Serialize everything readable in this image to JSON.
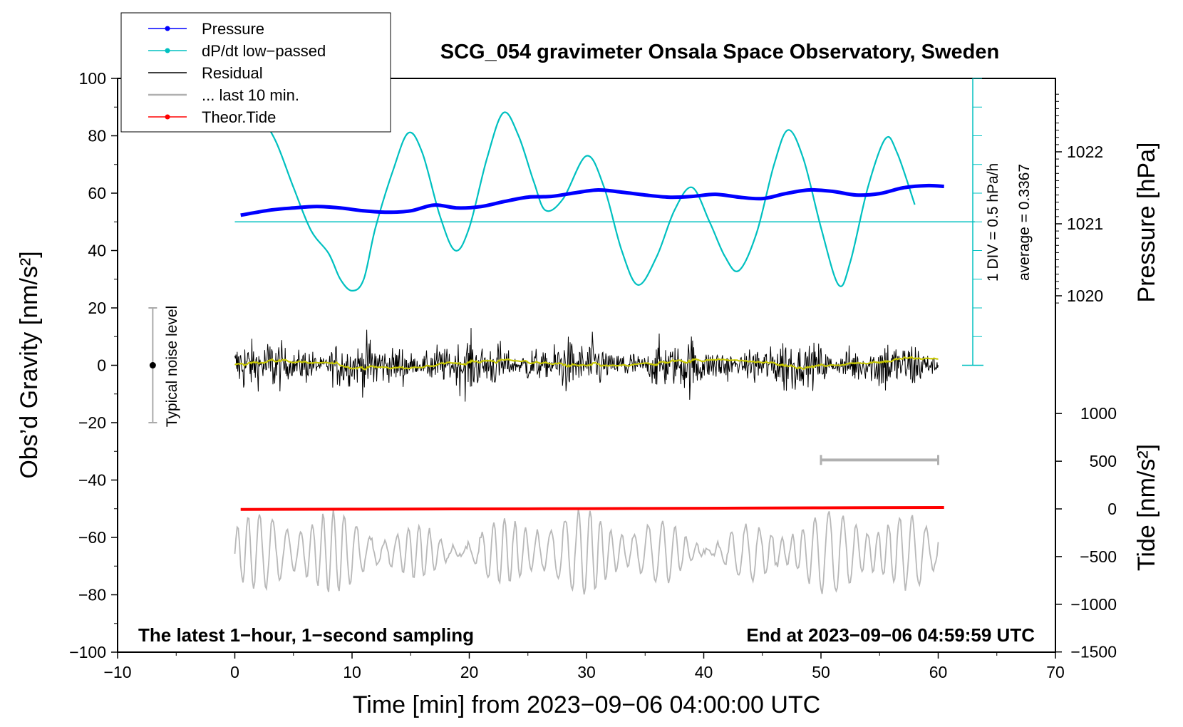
{
  "chart_data": {
    "type": "line",
    "title": "SCG_054 gravimeter Onsala Space Observatory, Sweden",
    "xlabel": "Time [min] from 2023−09−06 04:00:00 UTC",
    "ylabel": "Obs’d Gravity [nm/s²]",
    "xlim": [
      -10,
      70
    ],
    "ylim": [
      -100,
      100
    ],
    "x_ticks": [
      "−10",
      "0",
      "10",
      "20",
      "30",
      "40",
      "50",
      "60",
      "70"
    ],
    "y_ticks": [
      "100",
      "80",
      "60",
      "40",
      "20",
      "0",
      "−20",
      "−40",
      "−60",
      "−80",
      "−100"
    ],
    "pressure_axis": {
      "label": "Pressure [hPa]",
      "ticks": [
        "1022",
        "1021",
        "1020"
      ],
      "div_label": "1 DIV = 0.5 hPa/h",
      "average_label": "average = 0.3367"
    },
    "tide_axis": {
      "label": "Tide [nm/s²]",
      "ticks": [
        "1000",
        "500",
        "0",
        "−500",
        "−1000",
        "−1500"
      ]
    },
    "noise_label": "Typical noise level",
    "noise_range": [
      -20,
      20
    ],
    "bottom_left_note": "The latest 1−hour, 1−second sampling",
    "bottom_right_note": "End at 2023−09−06 04:59:59 UTC",
    "legend_position": "top-left",
    "legend": [
      {
        "label": "Pressure",
        "color": "#0000ff"
      },
      {
        "label": "dP/dt low−passed",
        "color": "#00c0c0"
      },
      {
        "label": "Residual",
        "color": "#000000"
      },
      {
        "label": "... last 10 min.",
        "color": "#b0b0b0"
      },
      {
        "label": "Theor.Tide",
        "color": "#ff0000"
      }
    ],
    "series": [
      {
        "name": "Pressure",
        "unit": "hPa",
        "x": [
          0.5,
          3,
          5,
          7,
          9,
          11,
          13,
          15,
          17,
          19,
          21,
          23,
          25,
          27,
          29,
          31,
          33,
          35,
          37,
          39,
          41,
          43,
          45,
          47,
          49,
          51,
          53,
          55,
          57,
          59,
          60.5
        ],
        "values": [
          1021.12,
          1021.19,
          1021.22,
          1021.24,
          1021.22,
          1021.18,
          1021.16,
          1021.18,
          1021.26,
          1021.22,
          1021.24,
          1021.31,
          1021.37,
          1021.38,
          1021.43,
          1021.47,
          1021.44,
          1021.4,
          1021.37,
          1021.38,
          1021.41,
          1021.37,
          1021.35,
          1021.42,
          1021.47,
          1021.45,
          1021.4,
          1021.42,
          1021.5,
          1021.53,
          1021.52
        ]
      },
      {
        "name": "dP/dt low−passed",
        "unit": "nm/s² plot scale",
        "x": [
          0,
          2,
          3.5,
          5,
          6.5,
          8,
          9,
          10,
          11,
          12,
          13.5,
          14.8,
          16,
          17.5,
          18.8,
          20,
          21.5,
          22.9,
          24.2,
          25.5,
          26.5,
          28,
          30,
          31.5,
          33,
          34.4,
          36,
          37.5,
          39,
          40.5,
          41.8,
          43,
          44.5,
          46,
          47.2,
          48.5,
          50,
          51.5,
          52.5,
          54,
          55.5,
          56.5,
          58
        ],
        "values": [
          99,
          88,
          78,
          62,
          47,
          39,
          30,
          26,
          30,
          48,
          68,
          81,
          74,
          52,
          40,
          48,
          72,
          88,
          80,
          64,
          54,
          58,
          73,
          62,
          40,
          28,
          38,
          54,
          62,
          50,
          38,
          33,
          46,
          70,
          82,
          72,
          48,
          28,
          36,
          62,
          79,
          74,
          56
        ]
      },
      {
        "name": "Residual",
        "unit": "nm/s²",
        "x": [
          0,
          60
        ],
        "values": [
          0,
          0
        ]
      },
      {
        "name": "... last 10 min.",
        "unit": "nm/s²",
        "x": [
          0,
          60
        ],
        "values": [
          -65,
          -65
        ]
      },
      {
        "name": "Theor.Tide",
        "unit": "nm/s²",
        "x": [
          0.5,
          10,
          20,
          30,
          40,
          50,
          60.5
        ],
        "values": [
          -5,
          -3,
          0,
          3,
          7,
          11,
          15
        ]
      }
    ]
  }
}
